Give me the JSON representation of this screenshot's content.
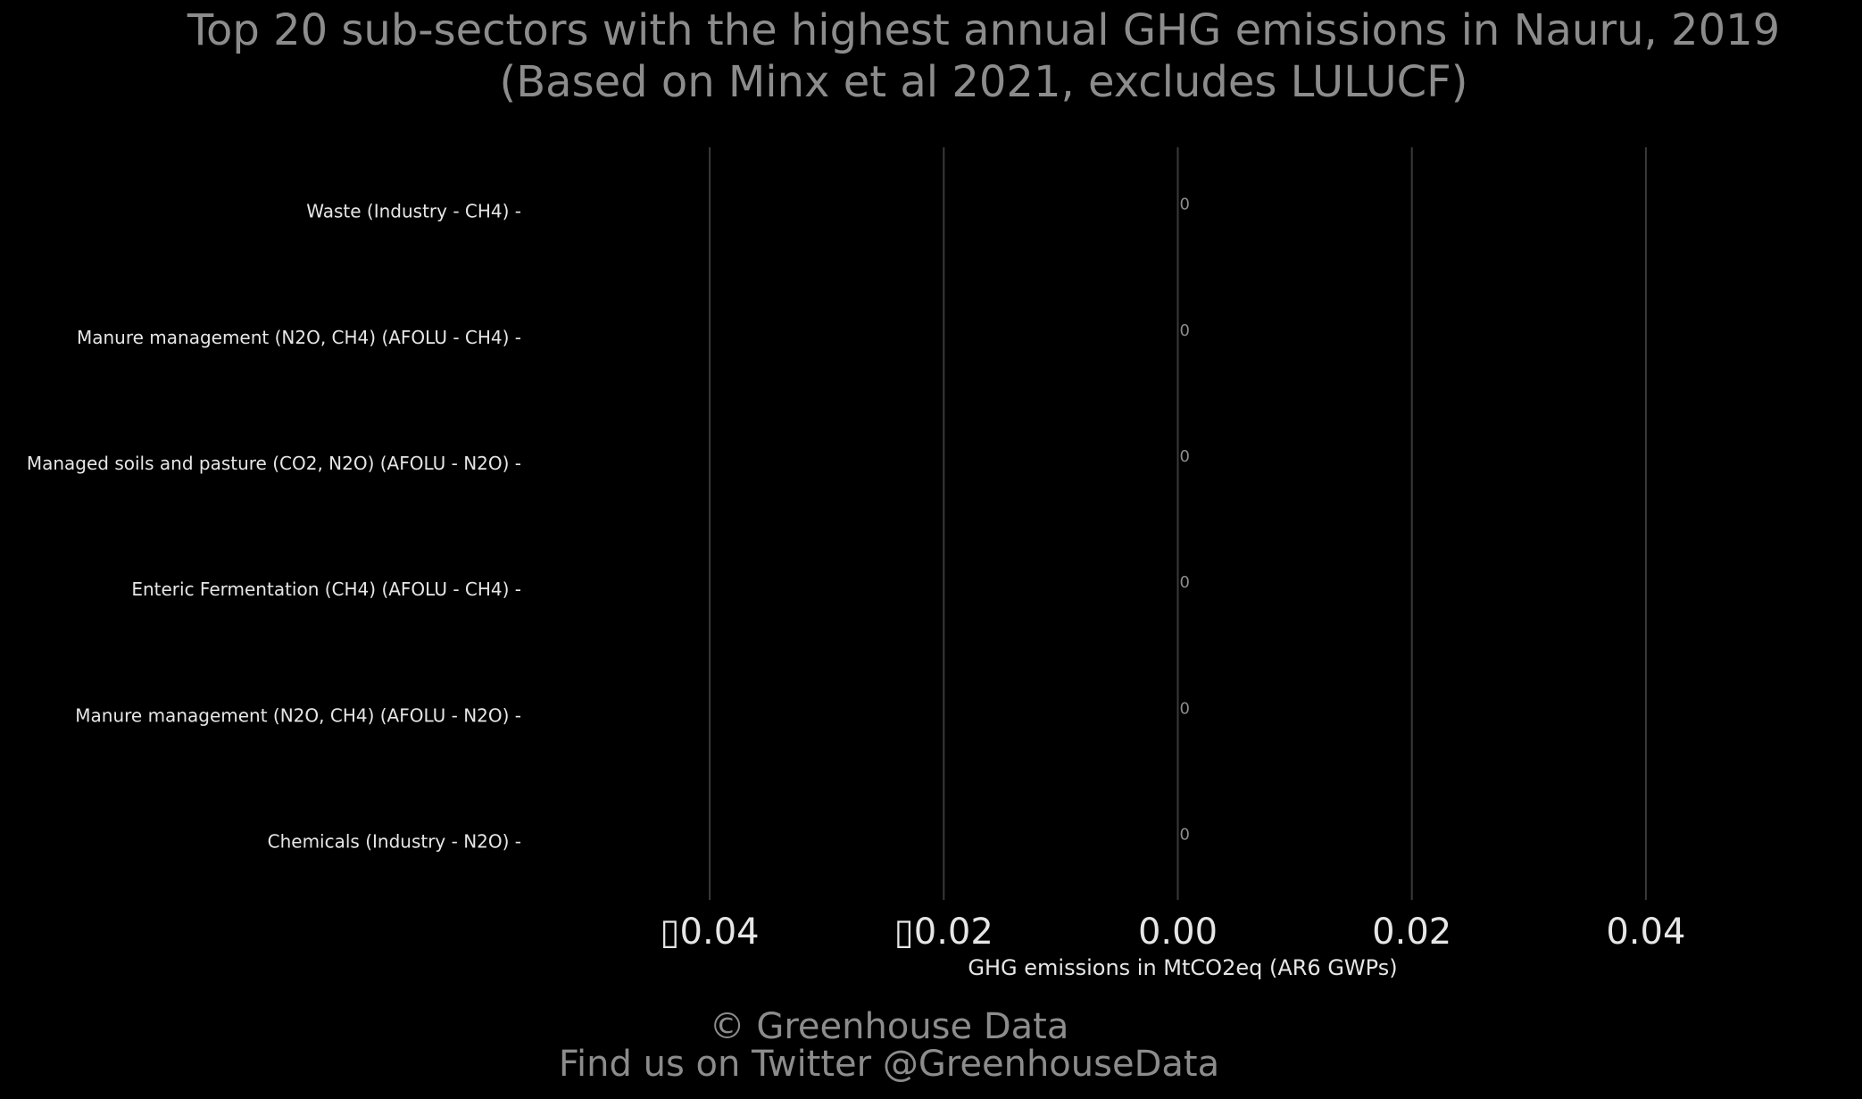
{
  "chart_data": {
    "type": "bar",
    "orientation": "horizontal",
    "title": "Top 20 sub-sectors with the highest annual GHG emissions in Nauru, 2019",
    "subtitle": "(Based on Minx et al 2021, excludes LULUCF)",
    "xlabel": "GHG emissions in MtCO2eq (AR6 GWPs)",
    "ylabel": "",
    "categories": [
      "Waste (Industry - CH4)",
      "Manure management (N2O, CH4) (AFOLU - CH4)",
      "Managed soils and pasture (CO2, N2O) (AFOLU - N2O)",
      "Enteric Fermentation (CH4) (AFOLU - CH4)",
      "Manure management (N2O, CH4) (AFOLU - N2O)",
      "Chemicals (Industry - N2O)"
    ],
    "values": [
      0,
      0,
      0,
      0,
      0,
      0
    ],
    "data_labels": [
      "0",
      "0",
      "0",
      "0",
      "0",
      "0"
    ],
    "xlim": [
      -0.05,
      0.05
    ],
    "xticks": [
      -0.04,
      -0.02,
      0.0,
      0.02,
      0.04
    ],
    "xtick_labels": [
      "▯0.04",
      "▯0.02",
      "0.00",
      "0.02",
      "0.04"
    ],
    "grid": true,
    "legend": "none"
  },
  "footer": {
    "copyright": "© Greenhouse Data",
    "twitter": "Find us on Twitter @GreenhouseData"
  },
  "colors": {
    "background": "#000000",
    "title": "#8c8c8c",
    "text": "#e6e6e6",
    "grid": "#3a3a3a"
  }
}
